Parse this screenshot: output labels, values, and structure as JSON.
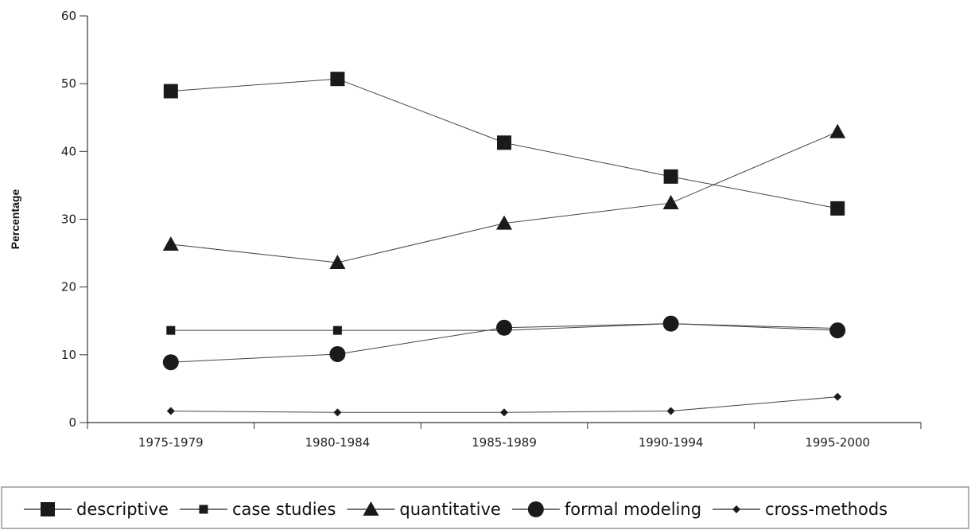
{
  "chart_data": {
    "type": "line",
    "title": "",
    "xlabel": "",
    "ylabel": "Percentage",
    "categories": [
      "1975-1979",
      "1980-1984",
      "1985-1989",
      "1990-1994",
      "1995-2000"
    ],
    "ylim": [
      0,
      60
    ],
    "yticks": [
      "0",
      "10",
      "20",
      "30",
      "40",
      "50",
      "60"
    ],
    "grid": false,
    "legend_position": "bottom",
    "series": [
      {
        "name": "descriptive",
        "marker": "square-large",
        "values": [
          48.9,
          50.7,
          41.3,
          36.3,
          31.6
        ]
      },
      {
        "name": "case studies",
        "marker": "square-small",
        "values": [
          13.6,
          13.6,
          13.6,
          14.6,
          13.9
        ]
      },
      {
        "name": "quantitative",
        "marker": "triangle",
        "values": [
          26.3,
          23.6,
          29.4,
          32.4,
          42.9
        ]
      },
      {
        "name": "formal modeling",
        "marker": "circle",
        "values": [
          8.9,
          10.1,
          14.0,
          14.6,
          13.6
        ]
      },
      {
        "name": "cross-methods",
        "marker": "diamond",
        "values": [
          1.7,
          1.5,
          1.5,
          1.7,
          3.8
        ]
      }
    ]
  }
}
